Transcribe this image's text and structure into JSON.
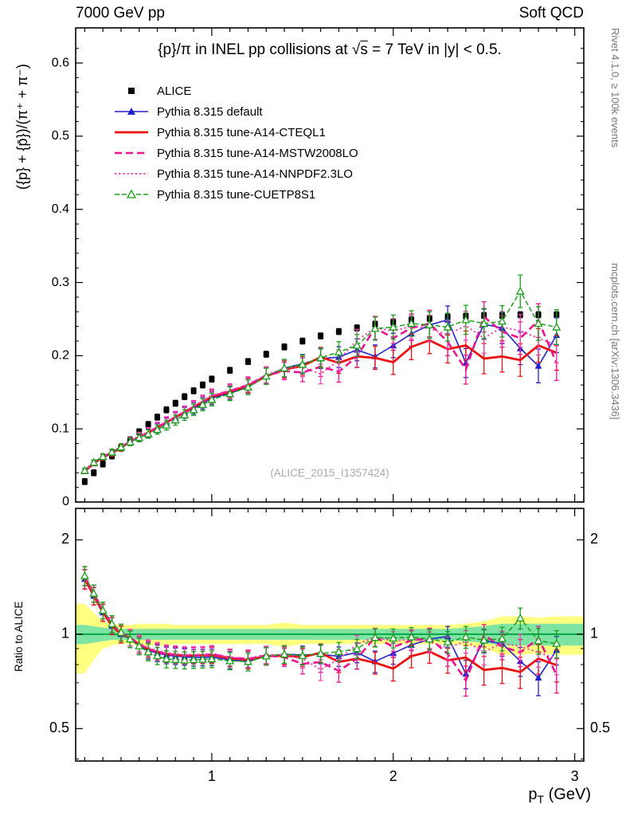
{
  "header": {
    "left": "7000 GeV pp",
    "right": "Soft QCD"
  },
  "title": {
    "prefix": "{p}/π in INEL pp collisions at ",
    "sqrt_symbol": "√",
    "sqrt_arg": "s",
    "suffix": " =  7 TeV in |y| < 0.5."
  },
  "watermark": "(ALICE_2015_I1357424)",
  "side_notes": {
    "top": "Rivet 4.1.0, ≥ 100k events",
    "bottom": "mcplots.cern.ch [arXiv:1306.3436]"
  },
  "axes": {
    "main_ylabel": "({p} + {p̄})/(π⁺ + π⁻)",
    "ratio_ylabel": "Ratio to ALICE",
    "xlabel_base": "p",
    "xlabel_sub": "T",
    "xlabel_rest": " (GeV)",
    "main_yticks": [
      0,
      0.1,
      0.2,
      0.3,
      0.4,
      0.5,
      0.6
    ],
    "ratio_yticks": [
      0.5,
      1,
      2
    ],
    "xticks": [
      1,
      2,
      3
    ]
  },
  "chart_data": {
    "type": "line",
    "x_range": [
      0.25,
      3.05
    ],
    "main_y_range": [
      0,
      0.648
    ],
    "ratio_y_range": [
      0.394,
      2.52
    ],
    "ratio_y_scale": "log",
    "x": [
      0.3,
      0.35,
      0.4,
      0.45,
      0.5,
      0.55,
      0.6,
      0.65,
      0.7,
      0.75,
      0.8,
      0.85,
      0.9,
      0.95,
      1.0,
      1.1,
      1.2,
      1.3,
      1.4,
      1.5,
      1.6,
      1.7,
      1.8,
      1.9,
      2.0,
      2.1,
      2.2,
      2.3,
      2.4,
      2.5,
      2.6,
      2.7,
      2.8,
      2.9
    ],
    "reference": {
      "name": "ALICE",
      "color": "#000000",
      "marker": "square",
      "errors": 0.004,
      "values": [
        0.028,
        0.04,
        0.052,
        0.063,
        0.074,
        0.085,
        0.096,
        0.106,
        0.116,
        0.126,
        0.135,
        0.144,
        0.152,
        0.16,
        0.168,
        0.18,
        0.192,
        0.202,
        0.212,
        0.22,
        0.227,
        0.233,
        0.238,
        0.243,
        0.246,
        0.249,
        0.251,
        0.253,
        0.254,
        0.255,
        0.255,
        0.256,
        0.256,
        0.256
      ]
    },
    "series": [
      {
        "name": "Pythia 8.315 default",
        "color": "#2222cc",
        "line": "solid",
        "width": 1.6,
        "marker": "triangle-filled",
        "values": [
          0.042,
          0.053,
          0.061,
          0.067,
          0.074,
          0.082,
          0.088,
          0.094,
          0.101,
          0.108,
          0.115,
          0.122,
          0.128,
          0.135,
          0.142,
          0.149,
          0.157,
          0.172,
          0.183,
          0.189,
          0.196,
          0.198,
          0.208,
          0.199,
          0.214,
          0.23,
          0.242,
          0.249,
          0.19,
          0.243,
          0.238,
          0.21,
          0.186,
          0.228
        ]
      },
      {
        "name": "Pythia 8.315 tune-A14-CTEQL1",
        "color": "#ee1111",
        "line": "solid",
        "width": 2.8,
        "marker": "none",
        "values": [
          0.042,
          0.053,
          0.061,
          0.067,
          0.074,
          0.083,
          0.089,
          0.095,
          0.102,
          0.109,
          0.116,
          0.123,
          0.13,
          0.137,
          0.144,
          0.151,
          0.159,
          0.172,
          0.181,
          0.186,
          0.198,
          0.19,
          0.199,
          0.197,
          0.191,
          0.212,
          0.221,
          0.209,
          0.214,
          0.196,
          0.199,
          0.194,
          0.214,
          0.204
        ]
      },
      {
        "name": "Pythia 8.315 tune-A14-MSTW2008LO",
        "color": "#ee1190",
        "line": "dashed",
        "width": 2.6,
        "marker": "none",
        "values": [
          0.043,
          0.054,
          0.062,
          0.068,
          0.075,
          0.083,
          0.089,
          0.095,
          0.102,
          0.109,
          0.116,
          0.123,
          0.13,
          0.137,
          0.145,
          0.152,
          0.16,
          0.173,
          0.179,
          0.177,
          0.185,
          0.178,
          0.199,
          0.238,
          0.224,
          0.238,
          0.244,
          0.219,
          0.181,
          0.253,
          0.233,
          0.224,
          0.248,
          0.19
        ]
      },
      {
        "name": "Pythia 8.315 tune-A14-NNPDF2.3LO",
        "color": "#f043b5",
        "line": "dotted",
        "width": 2.0,
        "marker": "none",
        "values": [
          0.043,
          0.054,
          0.062,
          0.068,
          0.075,
          0.083,
          0.09,
          0.096,
          0.103,
          0.11,
          0.117,
          0.124,
          0.131,
          0.138,
          0.146,
          0.152,
          0.161,
          0.174,
          0.182,
          0.184,
          0.175,
          0.194,
          0.221,
          0.238,
          0.234,
          0.24,
          0.237,
          0.229,
          0.241,
          0.224,
          0.239,
          0.234,
          0.224,
          0.214
        ]
      },
      {
        "name": "Pythia 8.315 tune-CUETP8S1",
        "color": "#18a018",
        "line": "dashed-small",
        "width": 1.5,
        "marker": "triangle-open",
        "values": [
          0.043,
          0.054,
          0.062,
          0.068,
          0.075,
          0.082,
          0.088,
          0.093,
          0.099,
          0.105,
          0.112,
          0.119,
          0.126,
          0.133,
          0.14,
          0.148,
          0.157,
          0.172,
          0.183,
          0.188,
          0.197,
          0.205,
          0.214,
          0.237,
          0.239,
          0.244,
          0.242,
          0.239,
          0.249,
          0.244,
          0.247,
          0.288,
          0.244,
          0.239
        ]
      }
    ],
    "error_model": {
      "base": 0.003,
      "slope": 0.008
    },
    "bands": {
      "yellow": {
        "color": "#ffff80",
        "half_widths": [
          0.25,
          0.17,
          0.1,
          0.08,
          0.07,
          0.07,
          0.08,
          0.08,
          0.08,
          0.08,
          0.07,
          0.07,
          0.07,
          0.07,
          0.07,
          0.07,
          0.07,
          0.07,
          0.09,
          0.07,
          0.07,
          0.07,
          0.07,
          0.07,
          0.07,
          0.07,
          0.07,
          0.07,
          0.08,
          0.1,
          0.14,
          0.14,
          0.13,
          0.14
        ]
      },
      "green": {
        "color": "#7fe3a3",
        "half_widths": [
          0.07,
          0.06,
          0.05,
          0.04,
          0.04,
          0.04,
          0.04,
          0.04,
          0.04,
          0.04,
          0.04,
          0.04,
          0.04,
          0.04,
          0.04,
          0.04,
          0.04,
          0.04,
          0.04,
          0.04,
          0.04,
          0.04,
          0.04,
          0.04,
          0.04,
          0.04,
          0.04,
          0.04,
          0.05,
          0.06,
          0.08,
          0.08,
          0.08,
          0.08
        ]
      },
      "unity_line_color": "#00a843"
    }
  }
}
